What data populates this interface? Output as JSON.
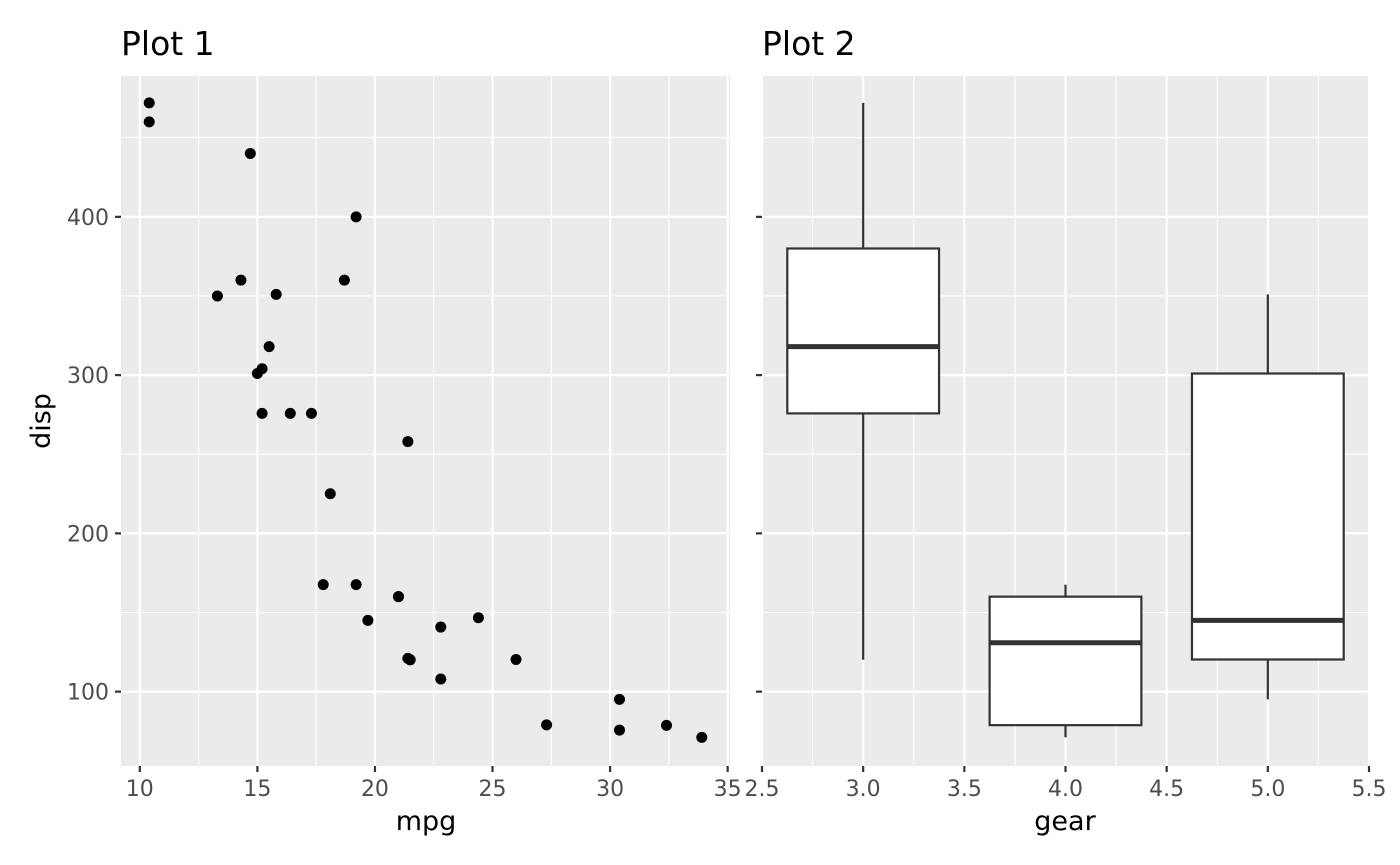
{
  "chart_data": [
    {
      "type": "scatter",
      "title": "Plot 1",
      "xlabel": "mpg",
      "ylabel": "disp",
      "xlim": [
        9.2,
        35.1
      ],
      "ylim": [
        53,
        489
      ],
      "x_ticks": [
        10,
        15,
        20,
        25,
        30,
        35
      ],
      "x_tick_labels": [
        "10",
        "15",
        "20",
        "25",
        "30",
        "35"
      ],
      "y_ticks": [
        100,
        200,
        300,
        400
      ],
      "y_tick_labels": [
        "100",
        "200",
        "300",
        "400"
      ],
      "grid": true,
      "points": [
        {
          "x": 21.0,
          "y": 160
        },
        {
          "x": 21.0,
          "y": 160
        },
        {
          "x": 22.8,
          "y": 108
        },
        {
          "x": 21.4,
          "y": 258
        },
        {
          "x": 18.7,
          "y": 360
        },
        {
          "x": 18.1,
          "y": 225
        },
        {
          "x": 14.3,
          "y": 360
        },
        {
          "x": 24.4,
          "y": 146.7
        },
        {
          "x": 22.8,
          "y": 140.8
        },
        {
          "x": 19.2,
          "y": 167.6
        },
        {
          "x": 17.8,
          "y": 167.6
        },
        {
          "x": 16.4,
          "y": 275.8
        },
        {
          "x": 17.3,
          "y": 275.8
        },
        {
          "x": 15.2,
          "y": 275.8
        },
        {
          "x": 10.4,
          "y": 472
        },
        {
          "x": 10.4,
          "y": 460
        },
        {
          "x": 14.7,
          "y": 440
        },
        {
          "x": 32.4,
          "y": 78.7
        },
        {
          "x": 30.4,
          "y": 75.7
        },
        {
          "x": 33.9,
          "y": 71.1
        },
        {
          "x": 21.5,
          "y": 120.1
        },
        {
          "x": 15.5,
          "y": 318
        },
        {
          "x": 15.2,
          "y": 304
        },
        {
          "x": 13.3,
          "y": 350
        },
        {
          "x": 19.2,
          "y": 400
        },
        {
          "x": 27.3,
          "y": 79
        },
        {
          "x": 26.0,
          "y": 120.3
        },
        {
          "x": 30.4,
          "y": 95.1
        },
        {
          "x": 15.8,
          "y": 351
        },
        {
          "x": 19.7,
          "y": 145
        },
        {
          "x": 15.0,
          "y": 301
        },
        {
          "x": 21.4,
          "y": 121
        }
      ]
    },
    {
      "type": "box",
      "title": "Plot 2",
      "xlabel": "gear",
      "ylabel": "",
      "xlim": [
        2.5,
        5.5
      ],
      "ylim": [
        53,
        489
      ],
      "x_ticks": [
        2.5,
        3.0,
        3.5,
        4.0,
        4.5,
        5.0,
        5.5
      ],
      "x_tick_labels": [
        "2.5",
        "3.0",
        "3.5",
        "4.0",
        "4.5",
        "5.0",
        "5.5"
      ],
      "y_ticks": [
        100,
        200,
        300,
        400
      ],
      "grid": true,
      "box_width": 0.75,
      "boxes": [
        {
          "x": 3,
          "min": 120.1,
          "q1": 275.8,
          "median": 318,
          "q3": 380,
          "max": 472
        },
        {
          "x": 4,
          "min": 71.1,
          "q1": 78.8,
          "median": 130.9,
          "q3": 160,
          "max": 167.6
        },
        {
          "x": 5,
          "min": 95.1,
          "q1": 120.3,
          "median": 145,
          "q3": 301,
          "max": 351
        }
      ]
    }
  ]
}
